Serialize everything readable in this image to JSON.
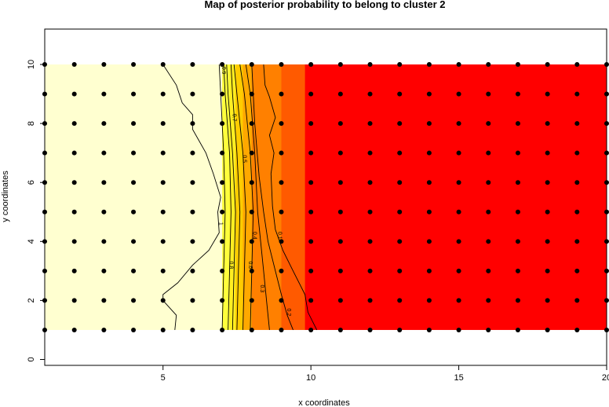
{
  "chart_data": {
    "type": "heatmap",
    "title": "Map of posterior probability to belong to cluster  2",
    "xlabel": "x coordinates",
    "ylabel": "y coordinates",
    "xlim": [
      1,
      20
    ],
    "ylim": [
      -0.2,
      11.2
    ],
    "x_ticks": [
      "5",
      "10",
      "15",
      "20"
    ],
    "y_ticks": [
      "0",
      "2",
      "4",
      "6",
      "8",
      "10"
    ],
    "grid": false,
    "field_extent": {
      "x": [
        1,
        20
      ],
      "y": [
        1,
        10
      ]
    },
    "points": {
      "x_range": [
        1,
        20
      ],
      "y_range": [
        1,
        10
      ],
      "step": 1,
      "marker": "filled-circle"
    },
    "color_bands": [
      {
        "x": [
          1,
          7.0
        ],
        "color": "#FFFFD0"
      },
      {
        "x": [
          7.0,
          7.25
        ],
        "color": "#FFFF3C"
      },
      {
        "x": [
          7.25,
          7.45
        ],
        "color": "#FFEE22"
      },
      {
        "x": [
          7.45,
          7.7
        ],
        "color": "#FFCC00"
      },
      {
        "x": [
          7.7,
          8.0
        ],
        "color": "#FFA800"
      },
      {
        "x": [
          8.0,
          9.0
        ],
        "color": "#FF8000"
      },
      {
        "x": [
          9.0,
          9.8
        ],
        "color": "#FF5A00"
      },
      {
        "x": [
          9.8,
          20
        ],
        "color": "#FF0000"
      }
    ],
    "contours": [
      {
        "level": "1",
        "label_at": [
          6.9,
          4.6
        ],
        "points": [
          [
            5.4,
            1.0
          ],
          [
            5.45,
            1.5
          ],
          [
            5.0,
            2.0
          ],
          [
            5.0,
            2.2
          ],
          [
            5.5,
            2.6
          ],
          [
            6.0,
            3.2
          ],
          [
            6.55,
            3.7
          ],
          [
            6.9,
            4.3
          ],
          [
            6.85,
            5.0
          ],
          [
            6.95,
            5.5
          ],
          [
            6.7,
            6.3
          ],
          [
            6.45,
            7.0
          ],
          [
            6.0,
            7.8
          ],
          [
            6.0,
            8.3
          ],
          [
            5.65,
            8.7
          ],
          [
            5.45,
            9.3
          ],
          [
            5.0,
            10.0
          ]
        ]
      },
      {
        "level": "0.9",
        "label_at": [
          7.0,
          9.8
        ],
        "points": [
          [
            7.0,
            1.0
          ],
          [
            7.05,
            3.0
          ],
          [
            7.1,
            5.0
          ],
          [
            7.05,
            7.0
          ],
          [
            6.95,
            9.0
          ],
          [
            6.9,
            10.0
          ]
        ]
      },
      {
        "level": "0.8",
        "label_at": [
          7.25,
          3.2
        ],
        "points": [
          [
            7.2,
            1.0
          ],
          [
            7.25,
            3.0
          ],
          [
            7.3,
            5.0
          ],
          [
            7.25,
            7.0
          ],
          [
            7.1,
            9.0
          ],
          [
            7.05,
            10.0
          ]
        ]
      },
      {
        "level": "0.7",
        "label_at": [
          7.35,
          8.2
        ],
        "points": [
          [
            7.35,
            1.0
          ],
          [
            7.4,
            3.0
          ],
          [
            7.45,
            5.0
          ],
          [
            7.35,
            7.0
          ],
          [
            7.2,
            9.0
          ],
          [
            7.15,
            10.0
          ]
        ]
      },
      {
        "level": "0.6",
        "label_at": [
          7.9,
          3.2
        ],
        "points": [
          [
            7.5,
            1.0
          ],
          [
            7.55,
            3.0
          ],
          [
            7.6,
            5.0
          ],
          [
            7.5,
            7.0
          ],
          [
            7.35,
            9.0
          ],
          [
            7.3,
            10.0
          ]
        ]
      },
      {
        "level": "0.5",
        "label_at": [
          7.7,
          6.8
        ],
        "points": [
          [
            7.7,
            1.0
          ],
          [
            7.75,
            3.0
          ],
          [
            7.8,
            5.0
          ],
          [
            7.7,
            7.0
          ],
          [
            7.5,
            9.0
          ],
          [
            7.4,
            10.0
          ]
        ]
      },
      {
        "level": "0.4",
        "label_at": [
          8.05,
          4.2
        ],
        "points": [
          [
            7.95,
            1.0
          ],
          [
            8.0,
            3.0
          ],
          [
            8.05,
            5.0
          ],
          [
            7.95,
            7.0
          ],
          [
            7.75,
            9.0
          ],
          [
            7.6,
            10.0
          ]
        ]
      },
      {
        "level": "0.3",
        "label_at": [
          8.3,
          2.4
        ],
        "points": [
          [
            8.6,
            1.0
          ],
          [
            8.5,
            2.0
          ],
          [
            8.4,
            3.0
          ],
          [
            8.3,
            4.0
          ],
          [
            8.2,
            5.0
          ],
          [
            8.1,
            7.0
          ],
          [
            7.95,
            9.0
          ],
          [
            7.8,
            10.0
          ]
        ]
      },
      {
        "level": "0.2",
        "label_at": [
          9.2,
          1.6
        ],
        "points": [
          [
            9.4,
            1.0
          ],
          [
            9.2,
            1.5
          ],
          [
            9.0,
            2.2
          ],
          [
            8.8,
            3.0
          ],
          [
            8.55,
            4.0
          ],
          [
            8.4,
            5.0
          ],
          [
            8.25,
            6.2
          ],
          [
            8.1,
            8.0
          ],
          [
            8.0,
            10.0
          ]
        ]
      },
      {
        "level": "0.1",
        "label_at": [
          8.9,
          4.2
        ],
        "points": [
          [
            10.2,
            1.0
          ],
          [
            9.9,
            1.6
          ],
          [
            9.8,
            2.2
          ],
          [
            9.4,
            3.0
          ],
          [
            9.05,
            3.7
          ],
          [
            8.8,
            4.4
          ],
          [
            8.7,
            5.2
          ],
          [
            8.65,
            6.3
          ],
          [
            8.75,
            7.0
          ],
          [
            8.6,
            7.6
          ],
          [
            8.8,
            8.2
          ],
          [
            8.6,
            8.9
          ],
          [
            8.45,
            9.3
          ],
          [
            8.4,
            10.0
          ]
        ]
      }
    ]
  }
}
